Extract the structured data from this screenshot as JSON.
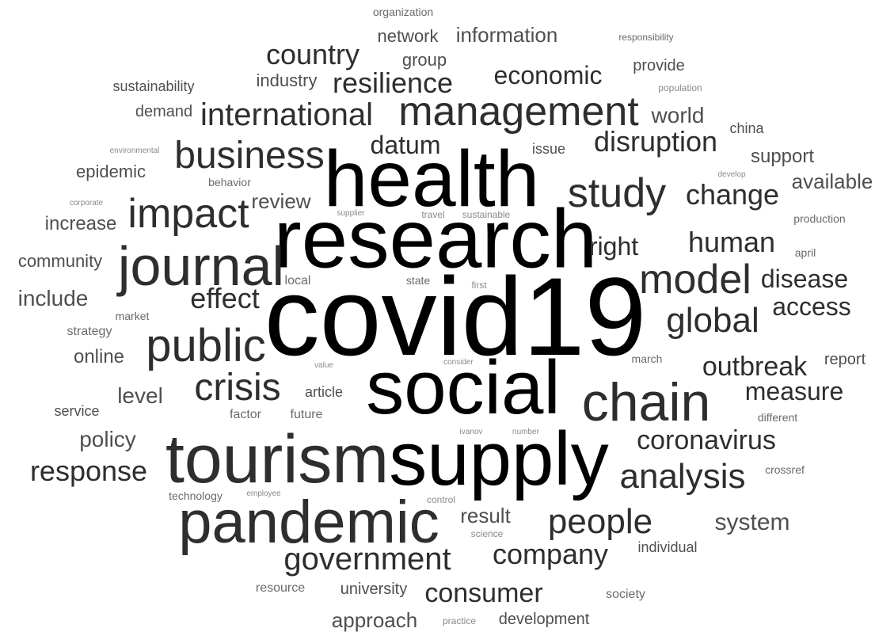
{
  "palette": {
    "strong": "#000000",
    "dark": "#2e2e2e",
    "mid": "#4f4f4f",
    "light": "#6a6a6a",
    "faint": "#8a8a8a"
  },
  "words": [
    {
      "text": "covid19",
      "tone": "strong"
    },
    {
      "text": "research",
      "tone": "strong"
    },
    {
      "text": "health",
      "tone": "strong"
    },
    {
      "text": "social",
      "tone": "strong"
    },
    {
      "text": "supply",
      "tone": "strong"
    },
    {
      "text": "tourism",
      "tone": "dark"
    },
    {
      "text": "pandemic",
      "tone": "dark"
    },
    {
      "text": "chain",
      "tone": "dark"
    },
    {
      "text": "journal",
      "tone": "dark"
    },
    {
      "text": "management",
      "tone": "dark"
    },
    {
      "text": "public",
      "tone": "dark"
    },
    {
      "text": "impact",
      "tone": "dark"
    },
    {
      "text": "business",
      "tone": "dark"
    },
    {
      "text": "study",
      "tone": "dark"
    },
    {
      "text": "model",
      "tone": "dark"
    },
    {
      "text": "crisis",
      "tone": "dark"
    },
    {
      "text": "international",
      "tone": "dark"
    },
    {
      "text": "global",
      "tone": "dark"
    },
    {
      "text": "analysis",
      "tone": "dark"
    },
    {
      "text": "people",
      "tone": "dark"
    },
    {
      "text": "government",
      "tone": "dark"
    },
    {
      "text": "country",
      "tone": "dark"
    },
    {
      "text": "resilience",
      "tone": "dark"
    },
    {
      "text": "disruption",
      "tone": "dark"
    },
    {
      "text": "change",
      "tone": "dark"
    },
    {
      "text": "effect",
      "tone": "dark"
    },
    {
      "text": "human",
      "tone": "dark"
    },
    {
      "text": "coronavirus",
      "tone": "dark"
    },
    {
      "text": "outbreak",
      "tone": "dark"
    },
    {
      "text": "response",
      "tone": "dark"
    },
    {
      "text": "company",
      "tone": "dark"
    },
    {
      "text": "consumer",
      "tone": "dark"
    },
    {
      "text": "economic",
      "tone": "dark"
    },
    {
      "text": "datum",
      "tone": "dark"
    },
    {
      "text": "right",
      "tone": "dark"
    },
    {
      "text": "disease",
      "tone": "dark"
    },
    {
      "text": "access",
      "tone": "dark"
    },
    {
      "text": "measure",
      "tone": "dark"
    },
    {
      "text": "information",
      "tone": "mid"
    },
    {
      "text": "include",
      "tone": "mid"
    },
    {
      "text": "system",
      "tone": "mid"
    },
    {
      "text": "review",
      "tone": "mid"
    },
    {
      "text": "level",
      "tone": "mid"
    },
    {
      "text": "policy",
      "tone": "mid"
    },
    {
      "text": "world",
      "tone": "mid"
    },
    {
      "text": "available",
      "tone": "mid"
    },
    {
      "text": "approach",
      "tone": "mid"
    },
    {
      "text": "result",
      "tone": "mid"
    },
    {
      "text": "support",
      "tone": "mid"
    },
    {
      "text": "network",
      "tone": "mid"
    },
    {
      "text": "industry",
      "tone": "mid"
    },
    {
      "text": "increase",
      "tone": "mid"
    },
    {
      "text": "community",
      "tone": "mid"
    },
    {
      "text": "epidemic",
      "tone": "mid"
    },
    {
      "text": "online",
      "tone": "mid"
    },
    {
      "text": "group",
      "tone": "mid"
    },
    {
      "text": "demand",
      "tone": "mid"
    },
    {
      "text": "report",
      "tone": "mid"
    },
    {
      "text": "provide",
      "tone": "mid"
    },
    {
      "text": "development",
      "tone": "mid"
    },
    {
      "text": "sustainability",
      "tone": "mid"
    },
    {
      "text": "university",
      "tone": "mid"
    },
    {
      "text": "issue",
      "tone": "mid"
    },
    {
      "text": "china",
      "tone": "mid"
    },
    {
      "text": "article",
      "tone": "mid"
    },
    {
      "text": "service",
      "tone": "mid"
    },
    {
      "text": "individual",
      "tone": "mid"
    },
    {
      "text": "resource",
      "tone": "light"
    },
    {
      "text": "society",
      "tone": "light"
    },
    {
      "text": "strategy",
      "tone": "light"
    },
    {
      "text": "behavior",
      "tone": "light"
    },
    {
      "text": "local",
      "tone": "light"
    },
    {
      "text": "factor",
      "tone": "light"
    },
    {
      "text": "future",
      "tone": "light"
    },
    {
      "text": "technology",
      "tone": "light"
    },
    {
      "text": "market",
      "tone": "light"
    },
    {
      "text": "march",
      "tone": "light"
    },
    {
      "text": "crossref",
      "tone": "light"
    },
    {
      "text": "different",
      "tone": "light"
    },
    {
      "text": "production",
      "tone": "light"
    },
    {
      "text": "april",
      "tone": "light"
    },
    {
      "text": "organization",
      "tone": "light"
    },
    {
      "text": "responsibility",
      "tone": "light"
    },
    {
      "text": "state",
      "tone": "light"
    },
    {
      "text": "first",
      "tone": "faint"
    },
    {
      "text": "population",
      "tone": "faint"
    },
    {
      "text": "environmental",
      "tone": "faint"
    },
    {
      "text": "develop",
      "tone": "faint"
    },
    {
      "text": "corporate",
      "tone": "faint"
    },
    {
      "text": "supplier",
      "tone": "faint"
    },
    {
      "text": "travel",
      "tone": "faint"
    },
    {
      "text": "sustainable",
      "tone": "faint"
    },
    {
      "text": "value",
      "tone": "faint"
    },
    {
      "text": "consider",
      "tone": "faint"
    },
    {
      "text": "ivanov",
      "tone": "faint"
    },
    {
      "text": "number",
      "tone": "faint"
    },
    {
      "text": "employee",
      "tone": "faint"
    },
    {
      "text": "control",
      "tone": "faint"
    },
    {
      "text": "science",
      "tone": "faint"
    },
    {
      "text": "practice",
      "tone": "faint"
    }
  ]
}
